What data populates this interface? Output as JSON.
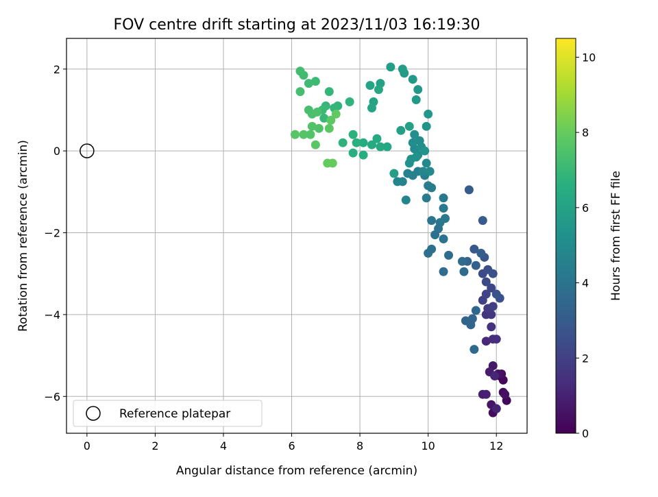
{
  "chart_data": {
    "type": "scatter",
    "title": "FOV centre drift starting at 2023/11/03 16:19:30",
    "xlabel": "Angular distance from reference (arcmin)",
    "ylabel": "Rotation from reference (arcmin)",
    "xlim": [
      -0.6,
      12.9
    ],
    "ylim": [
      -6.9,
      2.75
    ],
    "xticks": [
      0,
      2,
      4,
      6,
      8,
      10,
      12
    ],
    "xtick_labels": [
      "0",
      "2",
      "4",
      "6",
      "8",
      "10",
      "12"
    ],
    "yticks": [
      2,
      0,
      -2,
      -4,
      -6
    ],
    "ytick_labels": [
      "2",
      "0",
      "−2",
      "−4",
      "−6"
    ],
    "grid": true,
    "legend": {
      "position": "lower-left",
      "entries": [
        "Reference platepar"
      ]
    },
    "reference_point": {
      "x": 0,
      "y": 0,
      "label": "Reference platepar"
    },
    "colorbar": {
      "label": "Hours from first FF file",
      "colormap": "viridis",
      "range": [
        0,
        10.5
      ],
      "ticks": [
        0,
        2,
        4,
        6,
        8,
        10
      ],
      "tick_labels": [
        "0",
        "2",
        "4",
        "6",
        "8",
        "10"
      ]
    },
    "series": [
      {
        "color_by": "Hours from first FF file",
        "points": [
          [
            12.1,
            -5.5,
            0.1
          ],
          [
            12.2,
            -5.6,
            0.15
          ],
          [
            12.3,
            -6.1,
            0.2
          ],
          [
            12.2,
            -5.9,
            0.25
          ],
          [
            11.9,
            -6.4,
            0.3
          ],
          [
            12.0,
            -6.3,
            0.35
          ],
          [
            12.15,
            -5.45,
            0.4
          ],
          [
            11.95,
            -5.5,
            0.45
          ],
          [
            12.25,
            -5.95,
            0.5
          ],
          [
            12.05,
            -5.45,
            0.55
          ],
          [
            11.85,
            -6.2,
            0.6
          ],
          [
            11.9,
            -5.25,
            0.7
          ],
          [
            11.8,
            -5.4,
            0.8
          ],
          [
            11.6,
            -5.95,
            0.9
          ],
          [
            11.7,
            -5.95,
            1.0
          ],
          [
            12.0,
            -6.3,
            1.05
          ],
          [
            11.95,
            -5.5,
            1.1
          ],
          [
            11.7,
            -4.65,
            1.2
          ],
          [
            11.9,
            -4.6,
            1.3
          ],
          [
            12.0,
            -4.6,
            1.4
          ],
          [
            11.85,
            -4.3,
            1.5
          ],
          [
            11.7,
            -4.0,
            1.6
          ],
          [
            11.85,
            -4.0,
            1.7
          ],
          [
            11.75,
            -3.85,
            1.8
          ],
          [
            11.9,
            -3.8,
            1.9
          ],
          [
            11.6,
            -3.65,
            2.0
          ],
          [
            11.7,
            -3.5,
            2.1
          ],
          [
            11.85,
            -3.35,
            2.2
          ],
          [
            11.7,
            -3.2,
            2.3
          ],
          [
            11.6,
            -3.0,
            2.4
          ],
          [
            11.75,
            -2.9,
            2.5
          ],
          [
            11.9,
            -3.0,
            2.55
          ],
          [
            12.1,
            -3.6,
            2.6
          ],
          [
            12.0,
            -3.5,
            2.7
          ],
          [
            11.65,
            -2.6,
            2.8
          ],
          [
            11.35,
            -2.4,
            2.9
          ],
          [
            11.6,
            -1.7,
            3.0
          ],
          [
            11.2,
            -0.95,
            3.05
          ],
          [
            11.55,
            -2.5,
            3.1
          ],
          [
            11.4,
            -2.8,
            3.2
          ],
          [
            11.15,
            -2.7,
            3.3
          ],
          [
            11.3,
            -4.1,
            3.35
          ],
          [
            11.1,
            -4.15,
            3.4
          ],
          [
            11.25,
            -4.25,
            3.45
          ],
          [
            11.4,
            -3.9,
            3.5
          ],
          [
            11.35,
            -4.85,
            3.55
          ],
          [
            11.0,
            -2.7,
            3.6
          ],
          [
            11.05,
            -2.95,
            3.65
          ],
          [
            10.45,
            -2.95,
            3.7
          ],
          [
            10.6,
            -2.55,
            3.75
          ],
          [
            10.0,
            -2.5,
            3.8
          ],
          [
            10.1,
            -2.4,
            3.85
          ],
          [
            10.2,
            -2.05,
            3.9
          ],
          [
            10.45,
            -2.15,
            3.95
          ],
          [
            10.3,
            -1.9,
            4.0
          ],
          [
            10.1,
            -1.7,
            4.05
          ],
          [
            10.35,
            -1.75,
            4.1
          ],
          [
            10.5,
            -1.65,
            4.15
          ],
          [
            10.45,
            -1.4,
            4.2
          ],
          [
            10.45,
            -1.15,
            4.25
          ],
          [
            9.95,
            -1.15,
            4.3
          ],
          [
            10.0,
            -0.85,
            4.35
          ],
          [
            10.1,
            -0.9,
            4.4
          ],
          [
            9.9,
            -0.6,
            4.45
          ],
          [
            9.7,
            -0.5,
            4.5
          ],
          [
            9.55,
            -0.6,
            4.55
          ],
          [
            9.4,
            -0.55,
            4.6
          ],
          [
            9.25,
            -0.75,
            4.65
          ],
          [
            9.1,
            -0.75,
            4.7
          ],
          [
            9.35,
            -1.2,
            4.75
          ],
          [
            9.85,
            -0.5,
            4.8
          ],
          [
            10.05,
            -0.5,
            4.85
          ],
          [
            9.95,
            -0.3,
            4.9
          ],
          [
            9.7,
            -0.1,
            4.95
          ],
          [
            9.6,
            0.05,
            5.0
          ],
          [
            9.75,
            0.25,
            5.05
          ],
          [
            9.55,
            0.2,
            5.1
          ],
          [
            9.6,
            0.4,
            5.15
          ],
          [
            9.8,
            0.1,
            5.2
          ],
          [
            9.5,
            -0.2,
            5.25
          ],
          [
            9.45,
            -0.3,
            5.3
          ],
          [
            9.65,
            -0.15,
            5.35
          ],
          [
            9.9,
            0.0,
            5.4
          ],
          [
            9.95,
            0.6,
            5.45
          ],
          [
            10.0,
            0.9,
            5.5
          ],
          [
            9.7,
            1.5,
            5.55
          ],
          [
            9.65,
            1.25,
            5.6
          ],
          [
            9.55,
            1.75,
            5.65
          ],
          [
            9.3,
            1.9,
            5.7
          ],
          [
            9.25,
            2.0,
            5.75
          ],
          [
            8.9,
            2.05,
            5.8
          ],
          [
            9.0,
            -0.55,
            5.85
          ],
          [
            9.2,
            0.5,
            5.9
          ],
          [
            9.45,
            0.6,
            5.95
          ],
          [
            8.6,
            1.65,
            6.0
          ],
          [
            8.4,
            1.2,
            6.05
          ],
          [
            8.35,
            1.05,
            6.1
          ],
          [
            8.3,
            1.6,
            6.15
          ],
          [
            8.55,
            1.5,
            6.2
          ],
          [
            8.8,
            0.1,
            6.25
          ],
          [
            8.6,
            0.1,
            6.3
          ],
          [
            8.5,
            0.3,
            6.35
          ],
          [
            8.35,
            0.15,
            6.4
          ],
          [
            8.1,
            0.2,
            6.45
          ],
          [
            8.1,
            -0.1,
            6.5
          ],
          [
            7.8,
            -0.05,
            6.55
          ],
          [
            7.9,
            0.2,
            6.6
          ],
          [
            7.8,
            0.4,
            6.65
          ],
          [
            7.5,
            0.2,
            6.7
          ],
          [
            7.7,
            1.2,
            6.75
          ],
          [
            7.35,
            1.1,
            6.8
          ],
          [
            7.25,
            1.05,
            6.85
          ],
          [
            7.1,
            1.45,
            6.9
          ],
          [
            7.0,
            1.1,
            6.95
          ],
          [
            6.95,
            0.8,
            7.0
          ],
          [
            6.9,
            1.0,
            7.05
          ],
          [
            6.7,
            1.7,
            7.1
          ],
          [
            6.5,
            1.65,
            7.15
          ],
          [
            6.35,
            1.85,
            7.2
          ],
          [
            6.25,
            1.95,
            7.25
          ],
          [
            6.25,
            1.45,
            7.3
          ],
          [
            6.5,
            1.0,
            7.35
          ],
          [
            6.6,
            0.9,
            7.4
          ],
          [
            6.75,
            0.95,
            7.45
          ],
          [
            6.8,
            0.55,
            7.5
          ],
          [
            6.6,
            0.6,
            7.55
          ],
          [
            6.55,
            0.4,
            7.6
          ],
          [
            6.35,
            0.4,
            7.65
          ],
          [
            6.1,
            0.4,
            7.7
          ],
          [
            6.7,
            0.15,
            7.75
          ],
          [
            7.1,
            0.55,
            7.8
          ],
          [
            7.15,
            0.75,
            7.85
          ],
          [
            7.3,
            0.9,
            7.9
          ],
          [
            7.05,
            -0.3,
            7.95
          ],
          [
            7.2,
            -0.3,
            8.0
          ]
        ]
      }
    ]
  }
}
